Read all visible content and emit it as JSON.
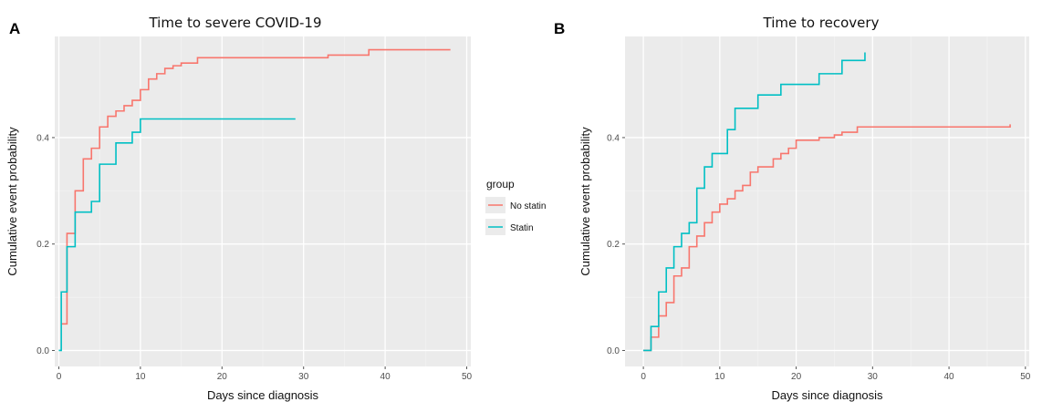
{
  "panels": {
    "left_label": "A",
    "right_label": "B"
  },
  "legend": {
    "title": "group",
    "items": [
      "No statin",
      "Statin"
    ]
  },
  "colors": {
    "No statin": "#F8766D",
    "Statin": "#00BFC4"
  },
  "chart_data": [
    {
      "type": "line",
      "step": true,
      "title": "Time to severe COVID-19",
      "xlabel": "Days since diagnosis",
      "ylabel": "Cumulative event probability",
      "xlim": [
        -0.5,
        50.5
      ],
      "ylim": [
        -0.03,
        0.59
      ],
      "xticks": [
        0,
        10,
        20,
        30,
        40,
        50
      ],
      "yticks": [
        0.0,
        0.2,
        0.4
      ],
      "ytick_labels": [
        "0.0",
        "0.2",
        "0.4"
      ],
      "grid": true,
      "series": [
        {
          "name": "No statin",
          "x": [
            0.3,
            1,
            2,
            3,
            4,
            5,
            6,
            7,
            8,
            9,
            10,
            11,
            12,
            13,
            14,
            15,
            17,
            20,
            33,
            38,
            48
          ],
          "y": [
            0.05,
            0.22,
            0.3,
            0.36,
            0.38,
            0.42,
            0.44,
            0.45,
            0.46,
            0.47,
            0.49,
            0.51,
            0.52,
            0.53,
            0.535,
            0.54,
            0.55,
            0.55,
            0.555,
            0.565,
            0.565
          ]
        },
        {
          "name": "Statin",
          "x": [
            0,
            0.3,
            1,
            2,
            4,
            5,
            7,
            9,
            10,
            29
          ],
          "y": [
            0.0,
            0.11,
            0.195,
            0.26,
            0.28,
            0.35,
            0.39,
            0.41,
            0.435,
            0.435
          ]
        }
      ]
    },
    {
      "type": "line",
      "step": true,
      "title": "Time to recovery",
      "xlabel": "Days since diagnosis",
      "ylabel": "Cumulative event probability",
      "xlim": [
        -2.4,
        50.5
      ],
      "ylim": [
        -0.03,
        0.59
      ],
      "xticks": [
        0,
        10,
        20,
        30,
        40,
        50
      ],
      "yticks": [
        0.0,
        0.2,
        0.4
      ],
      "ytick_labels": [
        "0.0",
        "0.2",
        "0.4"
      ],
      "grid": true,
      "series": [
        {
          "name": "No statin",
          "x": [
            0,
            1,
            2,
            3,
            4,
            5,
            6,
            7,
            8,
            9,
            10,
            11,
            12,
            13,
            14,
            15,
            17,
            18,
            19,
            20,
            23,
            25,
            26,
            28,
            48
          ],
          "y": [
            0.0,
            0.025,
            0.065,
            0.09,
            0.14,
            0.155,
            0.195,
            0.215,
            0.24,
            0.26,
            0.275,
            0.285,
            0.3,
            0.31,
            0.335,
            0.345,
            0.36,
            0.37,
            0.38,
            0.395,
            0.4,
            0.405,
            0.41,
            0.42,
            0.425
          ]
        },
        {
          "name": "Statin",
          "x": [
            0,
            1,
            2,
            3,
            4,
            5,
            6,
            7,
            8,
            9,
            11,
            12,
            15,
            18,
            23,
            26,
            29
          ],
          "y": [
            0.0,
            0.045,
            0.11,
            0.155,
            0.195,
            0.22,
            0.24,
            0.305,
            0.345,
            0.37,
            0.415,
            0.455,
            0.48,
            0.5,
            0.52,
            0.545,
            0.56
          ]
        }
      ]
    }
  ]
}
